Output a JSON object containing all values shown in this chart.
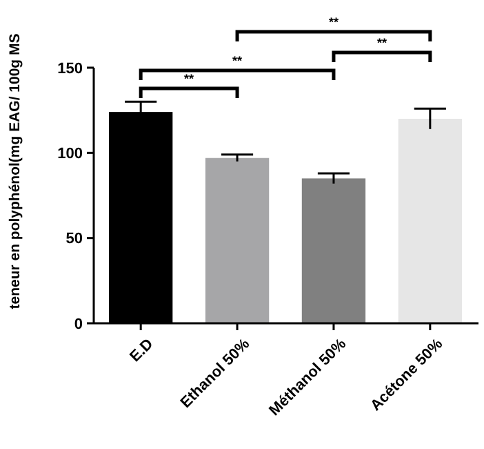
{
  "chart_data": {
    "type": "bar",
    "ylabel": "teneur en polyphénol(mg EAG/ 100g MS",
    "categories": [
      "E.D",
      "Ethanol 50%",
      "Méthanol 50%",
      "Acétone 50%"
    ],
    "values": [
      124,
      97,
      85,
      120
    ],
    "colors": [
      "#000000",
      "#a6a6a8",
      "#808080",
      "#e6e6e6"
    ],
    "errors": [
      6,
      2,
      3,
      6
    ],
    "ylim": [
      0,
      150
    ],
    "yticks": [
      0,
      50,
      100,
      150
    ],
    "grid": false,
    "annotations": [
      "**",
      "**",
      "**",
      "**"
    ]
  }
}
